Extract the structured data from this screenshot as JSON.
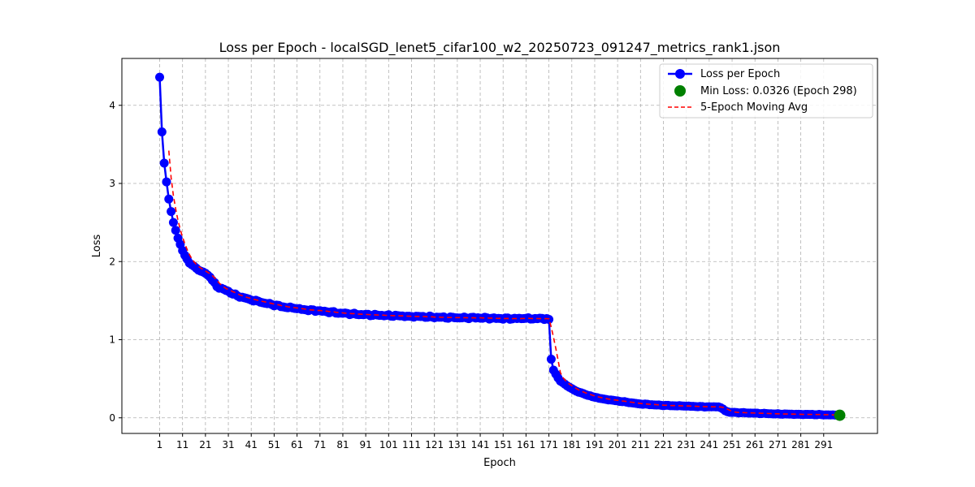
{
  "chart_data": {
    "type": "line",
    "title": "Loss per Epoch - localSGD_lenet5_cifar100_w2_20250723_091247_metrics_rank1.json",
    "xlabel": "Epoch",
    "ylabel": "Loss",
    "xlim": [
      -15.5,
      314.5
    ],
    "ylim": [
      -0.2,
      4.6
    ],
    "x_ticks": [
      1,
      11,
      21,
      31,
      41,
      51,
      61,
      71,
      81,
      91,
      101,
      111,
      121,
      131,
      141,
      151,
      161,
      171,
      181,
      191,
      201,
      211,
      221,
      231,
      241,
      251,
      261,
      271,
      281,
      291
    ],
    "y_ticks": [
      0,
      1,
      2,
      3,
      4
    ],
    "grid": true,
    "legend_position": "top-right",
    "colors": {
      "loss": "#0000ff",
      "min": "#008000",
      "moving_avg": "#ff0000"
    },
    "anchors": [
      [
        1,
        4.36
      ],
      [
        2,
        3.66
      ],
      [
        3,
        3.26
      ],
      [
        4,
        3.02
      ],
      [
        5,
        2.8
      ],
      [
        6,
        2.64
      ],
      [
        7,
        2.5
      ],
      [
        8,
        2.4
      ],
      [
        9,
        2.3
      ],
      [
        10,
        2.22
      ],
      [
        11,
        2.14
      ],
      [
        12,
        2.08
      ],
      [
        13,
        2.03
      ],
      [
        14,
        1.98
      ],
      [
        16,
        1.94
      ],
      [
        18,
        1.89
      ],
      [
        21,
        1.85
      ],
      [
        23,
        1.8
      ],
      [
        26,
        1.68
      ],
      [
        30,
        1.63
      ],
      [
        35,
        1.56
      ],
      [
        40,
        1.52
      ],
      [
        45,
        1.48
      ],
      [
        50,
        1.45
      ],
      [
        55,
        1.42
      ],
      [
        60,
        1.4
      ],
      [
        65,
        1.38
      ],
      [
        70,
        1.37
      ],
      [
        80,
        1.34
      ],
      [
        90,
        1.32
      ],
      [
        100,
        1.31
      ],
      [
        110,
        1.3
      ],
      [
        120,
        1.29
      ],
      [
        130,
        1.28
      ],
      [
        140,
        1.28
      ],
      [
        150,
        1.27
      ],
      [
        160,
        1.27
      ],
      [
        170,
        1.27
      ],
      [
        171,
        1.26
      ],
      [
        172,
        0.75
      ],
      [
        173,
        0.61
      ],
      [
        174,
        0.56
      ],
      [
        175,
        0.51
      ],
      [
        176,
        0.47
      ],
      [
        178,
        0.43
      ],
      [
        180,
        0.39
      ],
      [
        183,
        0.34
      ],
      [
        186,
        0.31
      ],
      [
        190,
        0.27
      ],
      [
        195,
        0.24
      ],
      [
        200,
        0.22
      ],
      [
        205,
        0.2
      ],
      [
        210,
        0.18
      ],
      [
        220,
        0.16
      ],
      [
        230,
        0.15
      ],
      [
        240,
        0.14
      ],
      [
        245,
        0.14
      ],
      [
        246,
        0.13
      ],
      [
        248,
        0.09
      ],
      [
        250,
        0.07
      ],
      [
        260,
        0.06
      ],
      [
        270,
        0.05
      ],
      [
        280,
        0.045
      ],
      [
        290,
        0.04
      ],
      [
        298,
        0.0326
      ]
    ],
    "min_point": {
      "epoch": 298,
      "loss": 0.0326
    },
    "moving_avg_window": 5,
    "legend": [
      {
        "key": "loss",
        "label": "Loss per Epoch"
      },
      {
        "key": "min",
        "label": "Min Loss: 0.0326 (Epoch 298)"
      },
      {
        "key": "moving_avg",
        "label": "5-Epoch Moving Avg"
      }
    ]
  }
}
